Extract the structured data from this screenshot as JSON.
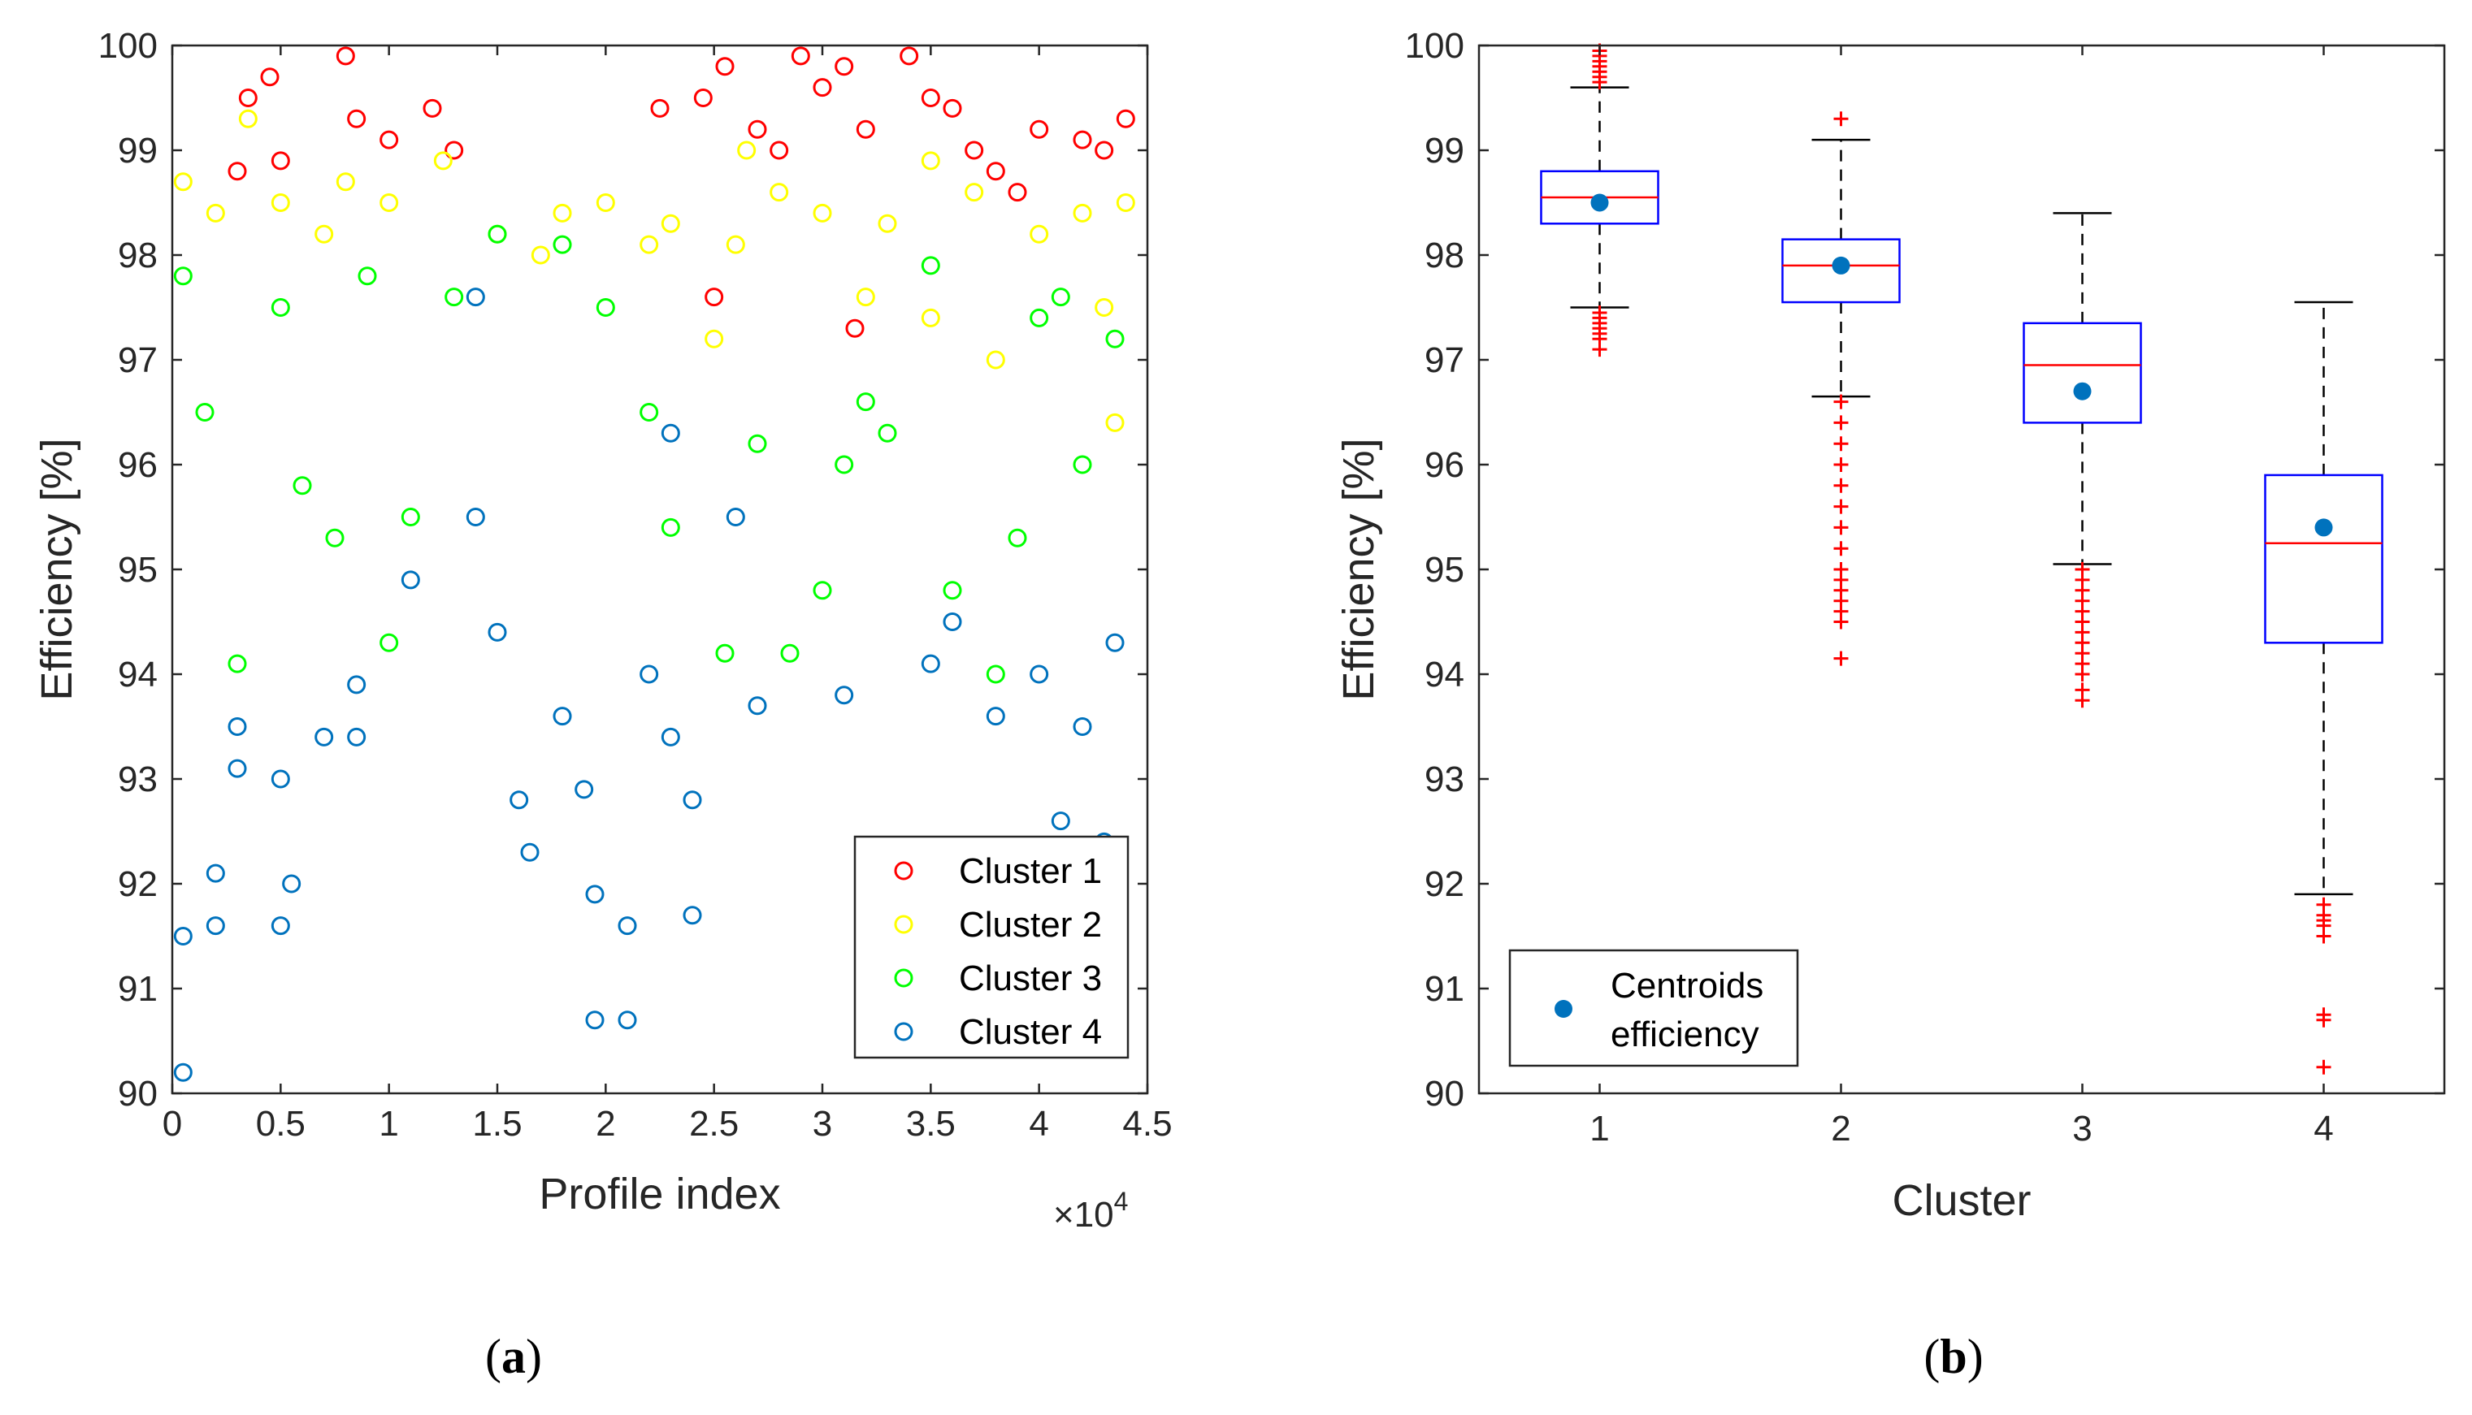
{
  "colors": {
    "cluster1": "#ff0000",
    "cluster2": "#ffff00",
    "cluster3": "#00ff00",
    "cluster4": "#0072bd",
    "box": "#0000ff",
    "median": "#ff0000",
    "outlier": "#ff0000",
    "centroid": "#0072bd",
    "axis": "#262626"
  },
  "captions": {
    "a_open": "(",
    "a_letter": "a",
    "a_close": ")",
    "b_open": "(",
    "b_letter": "b",
    "b_close": ")"
  },
  "chart_data": [
    {
      "type": "scatter",
      "xlabel": "Profile index",
      "ylabel": "Efficiency [%]",
      "x_exponent_base": "×10",
      "x_exponent_power": "4",
      "xlim": [
        0,
        4.5
      ],
      "ylim": [
        90,
        100
      ],
      "x_ticks": [
        "0",
        "0.5",
        "1",
        "1.5",
        "2",
        "2.5",
        "3",
        "3.5",
        "4",
        "4.5"
      ],
      "y_ticks": [
        "90",
        "91",
        "92",
        "93",
        "94",
        "95",
        "96",
        "97",
        "98",
        "99",
        "100"
      ],
      "marker": "open-circle",
      "grid": false,
      "legend_position": "bottom-right",
      "series": [
        {
          "name": "Cluster 1",
          "color": "#ff0000",
          "points": [
            [
              0.3,
              98.8
            ],
            [
              0.35,
              99.5
            ],
            [
              0.45,
              99.7
            ],
            [
              0.5,
              98.9
            ],
            [
              0.8,
              99.9
            ],
            [
              0.85,
              99.3
            ],
            [
              1.0,
              99.1
            ],
            [
              1.2,
              99.4
            ],
            [
              1.3,
              99.0
            ],
            [
              2.25,
              99.4
            ],
            [
              2.45,
              99.5
            ],
            [
              2.55,
              99.8
            ],
            [
              2.7,
              99.2
            ],
            [
              2.8,
              99.0
            ],
            [
              2.9,
              99.9
            ],
            [
              3.0,
              99.6
            ],
            [
              3.1,
              99.8
            ],
            [
              3.2,
              99.2
            ],
            [
              3.4,
              99.9
            ],
            [
              3.5,
              99.5
            ],
            [
              3.6,
              99.4
            ],
            [
              3.7,
              99.0
            ],
            [
              3.8,
              98.8
            ],
            [
              3.9,
              98.6
            ],
            [
              4.0,
              99.2
            ],
            [
              4.2,
              99.1
            ],
            [
              4.3,
              99.0
            ],
            [
              4.4,
              99.3
            ],
            [
              2.5,
              97.6
            ],
            [
              3.15,
              97.3
            ]
          ]
        },
        {
          "name": "Cluster 2",
          "color": "#ffff00",
          "points": [
            [
              0.05,
              98.7
            ],
            [
              0.2,
              98.4
            ],
            [
              0.35,
              99.3
            ],
            [
              0.5,
              98.5
            ],
            [
              0.8,
              98.7
            ],
            [
              1.0,
              98.5
            ],
            [
              1.25,
              98.9
            ],
            [
              1.5,
              98.2
            ],
            [
              1.8,
              98.4
            ],
            [
              2.0,
              98.5
            ],
            [
              2.3,
              98.3
            ],
            [
              2.6,
              98.1
            ],
            [
              2.8,
              98.6
            ],
            [
              3.0,
              98.4
            ],
            [
              3.3,
              98.3
            ],
            [
              3.5,
              98.9
            ],
            [
              3.7,
              98.6
            ],
            [
              4.0,
              98.2
            ],
            [
              4.2,
              98.4
            ],
            [
              4.3,
              97.5
            ],
            [
              4.4,
              98.5
            ],
            [
              2.5,
              97.2
            ],
            [
              3.2,
              97.6
            ],
            [
              3.5,
              97.4
            ],
            [
              3.8,
              97.0
            ],
            [
              4.35,
              96.4
            ],
            [
              0.7,
              98.2
            ],
            [
              1.7,
              98.0
            ],
            [
              2.2,
              98.1
            ],
            [
              2.65,
              99.0
            ]
          ]
        },
        {
          "name": "Cluster 3",
          "color": "#00ff00",
          "points": [
            [
              0.05,
              97.8
            ],
            [
              0.15,
              96.5
            ],
            [
              0.3,
              94.1
            ],
            [
              0.5,
              97.5
            ],
            [
              0.6,
              95.8
            ],
            [
              0.75,
              95.3
            ],
            [
              0.9,
              97.8
            ],
            [
              1.1,
              95.5
            ],
            [
              1.3,
              97.6
            ],
            [
              1.5,
              98.2
            ],
            [
              1.8,
              98.1
            ],
            [
              2.0,
              97.5
            ],
            [
              2.2,
              96.5
            ],
            [
              2.3,
              95.4
            ],
            [
              2.55,
              94.2
            ],
            [
              2.7,
              96.2
            ],
            [
              2.85,
              94.2
            ],
            [
              3.0,
              94.8
            ],
            [
              3.1,
              96.0
            ],
            [
              3.3,
              96.3
            ],
            [
              3.5,
              97.9
            ],
            [
              3.6,
              94.8
            ],
            [
              3.8,
              94.0
            ],
            [
              3.9,
              95.3
            ],
            [
              4.0,
              97.4
            ],
            [
              4.2,
              96.0
            ],
            [
              4.35,
              97.2
            ],
            [
              1.0,
              94.3
            ],
            [
              3.2,
              96.6
            ],
            [
              4.1,
              97.6
            ]
          ]
        },
        {
          "name": "Cluster 4",
          "color": "#0072bd",
          "points": [
            [
              0.05,
              91.5
            ],
            [
              0.05,
              90.2
            ],
            [
              0.2,
              92.1
            ],
            [
              0.2,
              91.6
            ],
            [
              0.3,
              93.1
            ],
            [
              0.3,
              93.5
            ],
            [
              0.5,
              93.0
            ],
            [
              0.5,
              91.6
            ],
            [
              0.55,
              92.0
            ],
            [
              0.7,
              93.4
            ],
            [
              0.85,
              93.9
            ],
            [
              0.85,
              93.4
            ],
            [
              1.1,
              94.9
            ],
            [
              1.4,
              95.5
            ],
            [
              1.5,
              94.4
            ],
            [
              1.6,
              92.8
            ],
            [
              1.65,
              92.3
            ],
            [
              1.8,
              93.6
            ],
            [
              1.9,
              92.9
            ],
            [
              1.95,
              91.9
            ],
            [
              1.95,
              90.7
            ],
            [
              2.1,
              91.6
            ],
            [
              2.1,
              90.7
            ],
            [
              2.2,
              94.0
            ],
            [
              2.3,
              93.4
            ],
            [
              2.4,
              91.7
            ],
            [
              2.4,
              92.8
            ],
            [
              2.6,
              95.5
            ],
            [
              2.7,
              93.7
            ],
            [
              3.1,
              93.8
            ],
            [
              3.5,
              94.1
            ],
            [
              3.6,
              94.5
            ],
            [
              3.8,
              93.6
            ],
            [
              4.0,
              94.0
            ],
            [
              4.1,
              92.6
            ],
            [
              4.2,
              93.5
            ],
            [
              4.3,
              92.4
            ],
            [
              4.35,
              94.3
            ],
            [
              1.4,
              97.6
            ],
            [
              2.3,
              96.3
            ]
          ]
        }
      ]
    },
    {
      "type": "box",
      "xlabel": "Cluster",
      "ylabel": "Efficiency [%]",
      "ylim": [
        90,
        100
      ],
      "categories": [
        "1",
        "2",
        "3",
        "4"
      ],
      "y_ticks": [
        "90",
        "91",
        "92",
        "93",
        "94",
        "95",
        "96",
        "97",
        "98",
        "99",
        "100"
      ],
      "grid": false,
      "legend_position": "bottom-left",
      "legend_label_line1": "Centroids",
      "legend_label_line2": "efficiency",
      "boxes": [
        {
          "category": "1",
          "whisker_low": 97.5,
          "q1": 98.3,
          "median": 98.55,
          "q3": 98.8,
          "whisker_high": 99.6,
          "centroid": 98.5,
          "outliers": [
            97.1,
            97.2,
            97.25,
            97.3,
            97.35,
            97.4,
            97.45,
            99.65,
            99.7,
            99.75,
            99.8,
            99.85,
            99.9,
            99.95
          ]
        },
        {
          "category": "2",
          "whisker_low": 96.65,
          "q1": 97.55,
          "median": 97.9,
          "q3": 98.15,
          "whisker_high": 99.1,
          "centroid": 97.9,
          "outliers": [
            94.15,
            94.5,
            94.6,
            94.7,
            94.8,
            94.9,
            95.0,
            95.2,
            95.4,
            95.6,
            95.8,
            96.0,
            96.2,
            96.4,
            96.6,
            99.3
          ]
        },
        {
          "category": "3",
          "whisker_low": 95.05,
          "q1": 96.4,
          "median": 96.95,
          "q3": 97.35,
          "whisker_high": 98.4,
          "centroid": 96.7,
          "outliers": [
            93.75,
            93.85,
            94.0,
            94.1,
            94.2,
            94.3,
            94.4,
            94.5,
            94.6,
            94.7,
            94.8,
            94.9,
            95.0
          ]
        },
        {
          "category": "4",
          "whisker_low": 91.9,
          "q1": 94.3,
          "median": 95.25,
          "q3": 95.9,
          "whisker_high": 97.55,
          "centroid": 95.4,
          "outliers": [
            90.25,
            90.7,
            90.75,
            91.5,
            91.6,
            91.65,
            91.7,
            91.8
          ]
        }
      ]
    }
  ]
}
